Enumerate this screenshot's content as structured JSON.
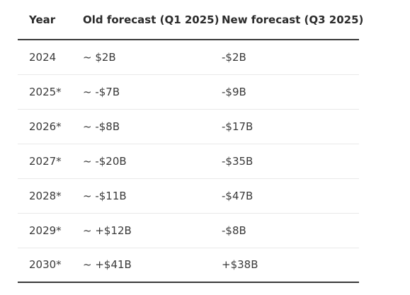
{
  "table": {
    "headers": {
      "year": "Year",
      "old": "Old forecast (Q1 2025)",
      "new": "New forecast (Q3 2025)"
    },
    "rows": [
      {
        "year": "2024",
        "old": "~ $2B",
        "new": "-$2B"
      },
      {
        "year": "2025*",
        "old": "~ -$7B",
        "new": "-$9B"
      },
      {
        "year": "2026*",
        "old": "~ -$8B",
        "new": "-$17B"
      },
      {
        "year": "2027*",
        "old": "~ -$20B",
        "new": "-$35B"
      },
      {
        "year": "2028*",
        "old": "~ -$11B",
        "new": "-$47B"
      },
      {
        "year": "2029*",
        "old": "~ +$12B",
        "new": "-$8B"
      },
      {
        "year": "2030*",
        "old": "~ +$41B",
        "new": "+$38B"
      }
    ]
  }
}
